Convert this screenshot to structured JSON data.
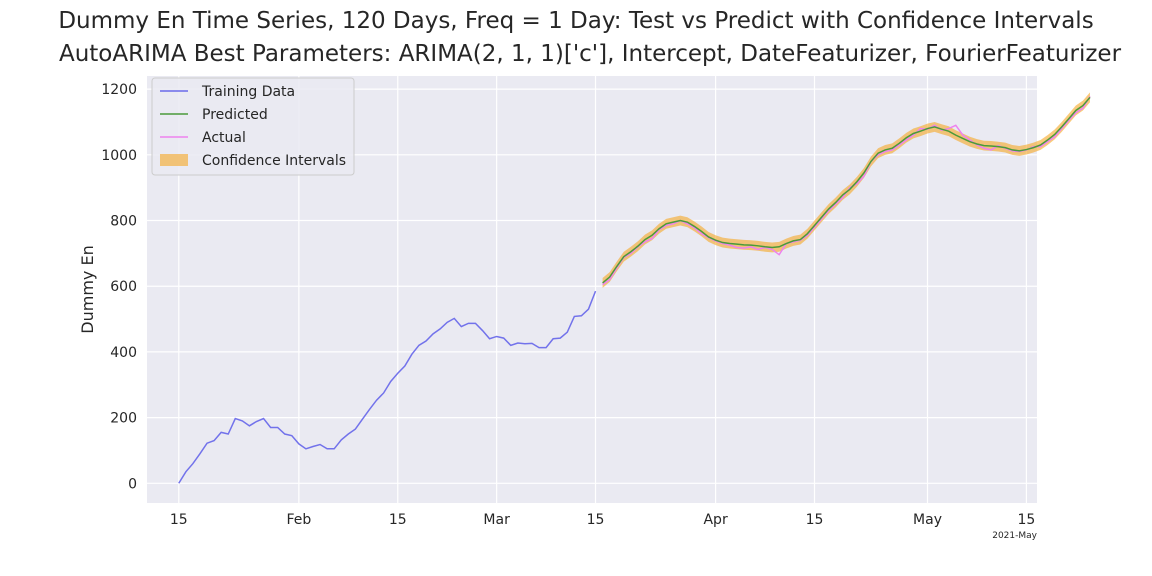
{
  "chart_data": {
    "type": "line",
    "title": "Dummy En Time Series, 120 Days, Freq = 1 Day: Test vs Predict with Confidence Intervals",
    "subtitle": "AutoARIMA Best Parameters: ARIMA(2, 1, 1)['c'], Intercept, DateFeaturizer, FourierFeaturizer",
    "xlabel": "",
    "ylabel": "Dummy En",
    "x_offset_label": "2021-May",
    "ylim": [
      -60,
      1240
    ],
    "xlim_days": [
      -4.5,
      121.5
    ],
    "grid": true,
    "legend_position": "upper left",
    "y_ticks": [
      0,
      200,
      400,
      600,
      800,
      1000,
      1200
    ],
    "x_ticks": [
      {
        "day": 0,
        "label": "15"
      },
      {
        "day": 17,
        "label": "Feb"
      },
      {
        "day": 31,
        "label": "15"
      },
      {
        "day": 45,
        "label": "Mar"
      },
      {
        "day": 59,
        "label": "15"
      },
      {
        "day": 76,
        "label": "Apr"
      },
      {
        "day": 90,
        "label": "15"
      },
      {
        "day": 106,
        "label": "May"
      },
      {
        "day": 120,
        "label": "15"
      }
    ],
    "series": [
      {
        "name": "Training Data",
        "color": "#6b6bea",
        "start_day": 0,
        "values": [
          0,
          35,
          60,
          90,
          122,
          130,
          155,
          150,
          197,
          190,
          175,
          188,
          197,
          170,
          170,
          150,
          145,
          120,
          105,
          112,
          118,
          105,
          105,
          132,
          150,
          165,
          195,
          225,
          253,
          275,
          310,
          335,
          357,
          393,
          420,
          433,
          455,
          470,
          490,
          502,
          477,
          487,
          487,
          465,
          440,
          447,
          442,
          420,
          427,
          425,
          426,
          413,
          413,
          440,
          442,
          460,
          508,
          510,
          530,
          585
        ]
      },
      {
        "name": "Predicted",
        "color": "#4a9a3a",
        "start_day": 60,
        "values": [
          610,
          628,
          660,
          690,
          705,
          722,
          742,
          755,
          775,
          790,
          795,
          800,
          795,
          782,
          767,
          750,
          740,
          733,
          730,
          728,
          726,
          725,
          723,
          720,
          718,
          720,
          730,
          738,
          742,
          760,
          785,
          810,
          835,
          855,
          878,
          895,
          918,
          945,
          980,
          1005,
          1015,
          1020,
          1035,
          1052,
          1065,
          1072,
          1080,
          1085,
          1078,
          1072,
          1060,
          1050,
          1040,
          1033,
          1028,
          1027,
          1025,
          1022,
          1015,
          1012,
          1016,
          1022,
          1030,
          1045,
          1062,
          1085,
          1110,
          1135,
          1150,
          1175
        ]
      },
      {
        "name": "Actual",
        "color": "#ee82ee",
        "start_day": 60,
        "values": [
          605,
          620,
          655,
          688,
          700,
          720,
          735,
          745,
          772,
          785,
          790,
          800,
          790,
          778,
          760,
          748,
          738,
          730,
          725,
          718,
          716,
          720,
          712,
          718,
          712,
          696,
          730,
          735,
          740,
          755,
          780,
          805,
          830,
          850,
          870,
          900,
          912,
          935,
          980,
          1000,
          1010,
          1015,
          1030,
          1045,
          1060,
          1080,
          1078,
          1090,
          1075,
          1080,
          1090,
          1060,
          1045,
          1030,
          1020,
          1015,
          1028,
          1020,
          1012,
          1010,
          1015,
          1025,
          1025,
          1040,
          1055,
          1080,
          1105,
          1128,
          1142,
          1178
        ]
      }
    ],
    "confidence_interval": {
      "name": "Confidence Intervals",
      "color": "#f5a623",
      "half_width": 15
    }
  }
}
